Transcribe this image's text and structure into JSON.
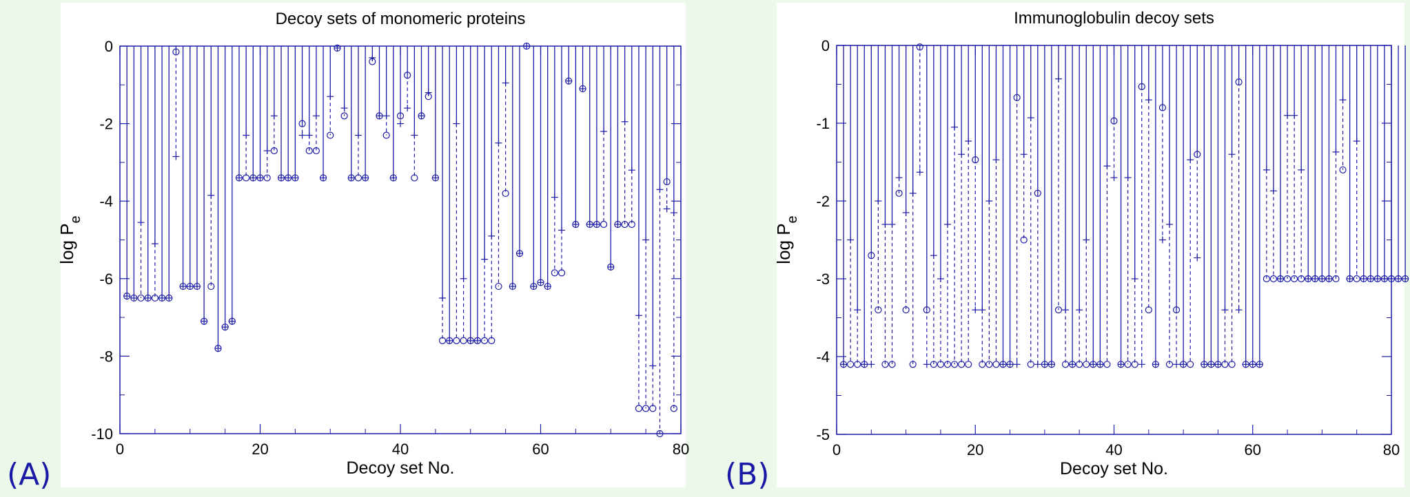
{
  "panel_labels": [
    "(A)",
    "(B)"
  ],
  "chart_data": [
    {
      "type": "scatter",
      "title": "Decoy sets of monomeric proteins",
      "xlabel": "Decoy set No.",
      "ylabel": "log P",
      "ylabel_sub": "e",
      "xlim": [
        0,
        80
      ],
      "ylim": [
        -10,
        0
      ],
      "xticks": [
        "0",
        "20",
        "40",
        "60",
        "80"
      ],
      "yticks": [
        "0",
        "-2",
        "-4",
        "-6",
        "-8",
        "-10"
      ],
      "series": [
        {
          "marker": "circle",
          "values": [
            -6.45,
            -6.5,
            -6.5,
            -6.5,
            -6.5,
            -6.5,
            -6.5,
            -0.15,
            -6.2,
            -6.2,
            -6.2,
            -7.1,
            -6.2,
            -7.8,
            -7.25,
            -7.1,
            -3.4,
            -3.4,
            -3.4,
            -3.4,
            -3.4,
            -2.7,
            -3.4,
            -3.4,
            -3.4,
            -2.0,
            -2.7,
            -2.7,
            -3.4,
            -2.3,
            -0.05,
            -1.8,
            -3.4,
            -3.4,
            -3.4,
            -0.4,
            -1.8,
            -2.3,
            -3.4,
            -1.8,
            -0.75,
            -3.4,
            -1.8,
            -1.3,
            -3.4,
            -7.6,
            -7.6,
            -7.6,
            -7.6,
            -7.6,
            -7.6,
            -7.6,
            -7.6,
            -6.2,
            -3.8,
            -6.2,
            -5.35,
            0.0,
            -6.2,
            -6.1,
            -6.2,
            -5.85,
            -5.85,
            -0.9,
            -4.6,
            -1.1,
            -4.6,
            -4.6,
            -4.6,
            -5.7,
            -4.6,
            -4.6,
            -4.6,
            -9.35,
            -9.35,
            -9.35,
            -10.0,
            -3.5,
            -9.35
          ]
        },
        {
          "marker": "plus",
          "values": [
            -6.45,
            -6.5,
            -4.55,
            -6.5,
            -5.1,
            -6.5,
            -6.5,
            -2.85,
            -6.2,
            -6.2,
            -6.2,
            -7.1,
            -3.85,
            -7.8,
            -7.25,
            -7.1,
            -3.4,
            -2.3,
            -3.4,
            -3.4,
            -2.7,
            -1.8,
            -3.4,
            -3.4,
            -3.4,
            -2.3,
            -2.3,
            -1.8,
            -3.4,
            -1.3,
            -0.05,
            -1.6,
            -3.4,
            -2.3,
            -3.4,
            -0.3,
            -1.8,
            -1.8,
            -3.4,
            -2.0,
            -1.6,
            -2.3,
            -1.8,
            -1.2,
            -3.4,
            -6.5,
            -7.6,
            -2.0,
            -6.0,
            -7.6,
            -7.6,
            -5.5,
            -4.9,
            -2.5,
            -0.95,
            -6.2,
            -5.35,
            0.0,
            -6.2,
            -6.1,
            -6.2,
            -3.9,
            -4.75,
            -0.9,
            -4.6,
            -1.1,
            -4.6,
            -4.6,
            -2.2,
            -5.7,
            -4.6,
            -1.95,
            -3.2,
            -6.95,
            -5.0,
            -8.25,
            -3.7,
            -4.2,
            -4.3
          ]
        }
      ]
    },
    {
      "type": "scatter",
      "title": "Immunoglobulin decoy sets",
      "xlabel": "Decoy set No.",
      "ylabel": "log P",
      "ylabel_sub": "e",
      "xlim": [
        0,
        80
      ],
      "ylim": [
        -5,
        0
      ],
      "xticks": [
        "0",
        "20",
        "40",
        "60",
        "80"
      ],
      "yticks": [
        "0",
        "-1",
        "-2",
        "-3",
        "-4",
        "-5"
      ],
      "series": [
        {
          "marker": "circle",
          "values": [
            -4.1,
            -4.1,
            -4.1,
            -4.1,
            -2.7,
            -3.4,
            -4.1,
            -4.1,
            -1.9,
            -3.4,
            -4.1,
            -0.02,
            -3.4,
            -4.1,
            -4.1,
            -4.1,
            -4.1,
            -4.1,
            -4.1,
            -1.47,
            -4.1,
            -4.1,
            -4.1,
            -4.1,
            -4.1,
            -0.67,
            -2.5,
            -4.1,
            -1.9,
            -4.1,
            -4.1,
            -3.4,
            -4.1,
            -4.1,
            -4.1,
            -4.1,
            -4.1,
            -4.1,
            -4.1,
            -0.97,
            -4.1,
            -4.1,
            -4.1,
            -0.53,
            -3.4,
            -4.1,
            -0.8,
            -4.1,
            -3.4,
            -4.1,
            -4.1,
            -1.4,
            -4.1,
            -4.1,
            -4.1,
            -4.1,
            -4.1,
            -0.47,
            -4.1,
            -4.1,
            -4.1,
            -3.0,
            -3.0,
            -3.0,
            -3.0,
            -3.0,
            -3.0,
            -3.0,
            -3.0,
            -3.0,
            -3.0,
            -3.0,
            -1.6,
            -3.0,
            -3.0,
            -3.0,
            -3.0,
            -3.0,
            -3.0,
            -3.0,
            -3.0,
            -3.0
          ]
        },
        {
          "marker": "plus",
          "values": [
            -4.1,
            -2.5,
            -3.4,
            -4.1,
            -4.1,
            -2.0,
            -2.3,
            -2.3,
            -1.7,
            -2.15,
            -1.9,
            -1.63,
            -4.1,
            -2.7,
            -3.0,
            -2.3,
            -1.05,
            -1.4,
            -1.23,
            -3.4,
            -3.4,
            -2.0,
            -1.47,
            -4.1,
            -4.1,
            -4.1,
            -1.4,
            -0.93,
            -4.1,
            -4.1,
            -4.1,
            -0.43,
            -3.4,
            -4.1,
            -3.4,
            -2.5,
            -4.1,
            -4.1,
            -1.55,
            -1.7,
            -4.1,
            -1.7,
            -3.0,
            -4.1,
            -0.7,
            -4.1,
            -2.5,
            -2.3,
            -4.1,
            -4.1,
            -1.47,
            -2.73,
            -4.1,
            -4.1,
            -4.1,
            -3.4,
            -1.4,
            -3.4,
            -4.1,
            -4.1,
            -4.1,
            -1.6,
            -1.87,
            -3.0,
            -0.9,
            -0.9,
            -1.6,
            -3.0,
            -3.0,
            -3.0,
            -3.0,
            -1.37,
            -0.7,
            -3.0,
            -1.23,
            -3.0,
            -3.0,
            -3.0,
            -3.0,
            -3.0,
            -3.0,
            -3.0
          ]
        }
      ]
    }
  ],
  "colors": {
    "ink": "#1a1aa6",
    "background": "#ecf9ea",
    "plot_bg": "#ffffff"
  }
}
